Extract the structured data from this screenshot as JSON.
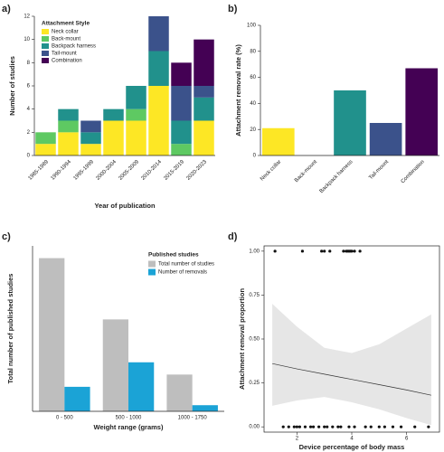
{
  "chart_data": [
    {
      "type": "stacked_bar",
      "label": "a)",
      "x_label": "Year of publication",
      "y_label": "Number of studies",
      "legend_title": "Attachment Style",
      "categories": [
        "1985-1989",
        "1990-1994",
        "1995-1999",
        "2000-2004",
        "2005-2009",
        "2010-2014",
        "2015-2019",
        "2020-2023"
      ],
      "series": [
        {
          "name": "Neck collar",
          "color": "#fde725",
          "values": [
            1,
            2,
            1,
            3,
            3,
            6,
            0,
            3
          ]
        },
        {
          "name": "Back-mount",
          "color": "#5ec962",
          "values": [
            1,
            1,
            0,
            0,
            1,
            0,
            1,
            0
          ]
        },
        {
          "name": "Backpack harness",
          "color": "#21918c",
          "values": [
            0,
            1,
            1,
            1,
            2,
            3,
            2,
            2
          ]
        },
        {
          "name": "Tail-mount",
          "color": "#3b528b",
          "values": [
            0,
            0,
            1,
            0,
            0,
            3,
            3,
            1
          ]
        },
        {
          "name": "Combination",
          "color": "#440154",
          "values": [
            0,
            0,
            0,
            0,
            0,
            0,
            2,
            4
          ]
        }
      ],
      "ylim": [
        0,
        12
      ],
      "yticks": [
        0,
        2,
        4,
        6,
        8,
        10,
        12
      ]
    },
    {
      "type": "bar",
      "label": "b)",
      "y_label": "Attachment removal rate (%)",
      "categories": [
        "Neck collar",
        "Back-mount",
        "Backpack harness",
        "Tail-mount",
        "Combination"
      ],
      "values": [
        21,
        0,
        50,
        25,
        67
      ],
      "colors": [
        "#fde725",
        "#5ec962",
        "#21918c",
        "#3b528b",
        "#440154"
      ],
      "ylim": [
        0,
        100
      ],
      "yticks": [
        0,
        20,
        40,
        60,
        80,
        100
      ]
    },
    {
      "type": "grouped_bar",
      "label": "c)",
      "x_label": "Weight range (grams)",
      "y_label": "Total number of published studies",
      "legend_title": "Published studies",
      "categories": [
        "0 - 500",
        "500 - 1000",
        "1000 - 1750"
      ],
      "series": [
        {
          "name": "Total number of studies",
          "color": "#bebebe",
          "values": [
            25,
            15,
            6
          ]
        },
        {
          "name": "Number of removals",
          "color": "#1ba3d6",
          "values": [
            4,
            8,
            1
          ]
        }
      ],
      "ylim": [
        0,
        27
      ]
    },
    {
      "type": "scatter",
      "label": "d)",
      "x_label": "Device percentage of body mass",
      "y_label": "Attachment removal proportion",
      "x": [
        1.2,
        2.2,
        2.9,
        3.0,
        3.2,
        3.7,
        3.8,
        3.85,
        3.9,
        3.95,
        4.0,
        4.1,
        4.3,
        1.5,
        1.7,
        1.9,
        2.0,
        2.1,
        2.3,
        2.5,
        2.6,
        2.8,
        3.0,
        3.1,
        3.3,
        3.5,
        3.6,
        3.9,
        4.1,
        4.5,
        4.7,
        5.0,
        5.2,
        5.5,
        5.8,
        6.3,
        6.8
      ],
      "values": [
        1,
        1,
        1,
        1,
        1,
        1,
        1,
        1,
        1,
        1,
        1,
        1,
        1,
        0,
        0,
        0,
        0,
        0,
        0,
        0,
        0,
        0,
        0,
        0,
        0,
        0,
        0,
        0,
        0,
        0,
        0,
        0,
        0,
        0,
        0,
        0,
        0
      ],
      "trend": {
        "x": [
          1.1,
          2,
          3,
          4,
          5,
          6,
          6.9
        ],
        "values": [
          0.36,
          0.33,
          0.3,
          0.27,
          0.24,
          0.21,
          0.18
        ],
        "lower": [
          0.12,
          0.15,
          0.17,
          0.14,
          0.1,
          0.05,
          0.01
        ],
        "upper": [
          0.7,
          0.57,
          0.45,
          0.42,
          0.47,
          0.56,
          0.64
        ]
      },
      "xlim": [
        0.8,
        7.2
      ],
      "xticks": [
        2,
        4,
        6
      ],
      "ylim": [
        -0.03,
        1.03
      ],
      "yticks": [
        {
          "value": 0,
          "label": "0.00"
        },
        {
          "value": 0.25,
          "label": "0.25"
        },
        {
          "value": 0.5,
          "label": "0.50"
        },
        {
          "value": 0.75,
          "label": "0.75"
        },
        {
          "value": 1,
          "label": "1.00"
        }
      ]
    }
  ]
}
